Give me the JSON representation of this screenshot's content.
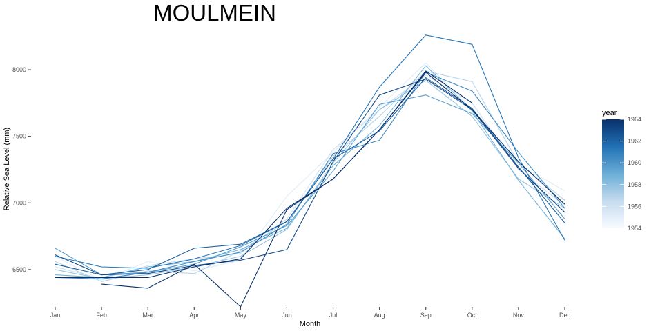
{
  "chart_data": {
    "type": "line",
    "title": "MOULMEIN",
    "xlabel": "Month",
    "ylabel": "Relative Sea Level (mm)",
    "categories": [
      "Jan",
      "Feb",
      "Mar",
      "Apr",
      "May",
      "Jun",
      "Jul",
      "Aug",
      "Sep",
      "Oct",
      "Nov",
      "Dec"
    ],
    "ylim": [
      6220,
      8290
    ],
    "yticks": [
      6500,
      7000,
      7500,
      8000
    ],
    "ytick_labels": [
      "6500",
      "7000",
      "7500",
      "8000"
    ],
    "grid": false,
    "legend": {
      "title": "year",
      "placement": "right",
      "type": "colorbar",
      "range": [
        1954,
        1964
      ],
      "ticks": [
        1954,
        1956,
        1958,
        1960,
        1962,
        1964
      ],
      "tick_labels": [
        "1954",
        "1956",
        "1958",
        "1960",
        "1962",
        "1964"
      ],
      "color_low": "#f7fbff",
      "color_high": "#08306b"
    },
    "series": [
      {
        "year": 1954,
        "values": [
          6600,
          6420,
          6560,
          6490,
          6570,
          7050,
          7380,
          7720,
          8050,
          7700,
          7290,
          7090
        ]
      },
      {
        "year": 1955,
        "values": [
          6520,
          6430,
          6530,
          6580,
          6620,
          6880,
          7400,
          7700,
          7960,
          7750,
          7250,
          6980
        ]
      },
      {
        "year": 1956,
        "values": [
          6560,
          6410,
          6490,
          6470,
          6640,
          6860,
          7350,
          7650,
          7990,
          7910,
          7300,
          7020
        ]
      },
      {
        "year": 1957,
        "values": [
          6500,
          6430,
          6460,
          6520,
          6600,
          6800,
          7300,
          7700,
          7920,
          7650,
          7180,
          6960
        ]
      },
      {
        "year": 1958,
        "values": [
          6460,
          6440,
          6520,
          6560,
          6650,
          6810,
          7280,
          7580,
          8030,
          7690,
          7170,
          6730
        ]
      },
      {
        "year": 1959,
        "values": [
          6660,
          6460,
          6480,
          6540,
          6670,
          6830,
          7240,
          7740,
          7810,
          7670,
          7300,
          6880
        ]
      },
      {
        "year": 1960,
        "values": [
          6440,
          6430,
          6480,
          6560,
          6630,
          6840,
          7370,
          7470,
          7980,
          7840,
          7380,
          6960
        ]
      },
      {
        "year": 1961,
        "values": [
          6600,
          6520,
          6510,
          6580,
          6680,
          6860,
          7330,
          7870,
          8260,
          8190,
          7340,
          6720
        ]
      },
      {
        "year": 1962,
        "values": [
          6540,
          6460,
          6500,
          6660,
          6690,
          6860,
          7330,
          7540,
          7940,
          7710,
          7270,
          6850
        ]
      },
      {
        "year": 1963,
        "values": [
          6610,
          6460,
          6470,
          6530,
          6570,
          6650,
          7310,
          7810,
          7930,
          7700,
          7260,
          6930
        ]
      },
      {
        "year": 1964,
        "values": [
          null,
          6390,
          6360,
          6540,
          6220,
          6950,
          7180,
          7550,
          7990,
          7750,
          null,
          null
        ]
      },
      {
        "year": 1964,
        "values": [
          6440,
          6440,
          6440,
          6520,
          6580,
          6960,
          7180,
          7550,
          7980,
          7700,
          7310,
          6990
        ]
      }
    ]
  }
}
